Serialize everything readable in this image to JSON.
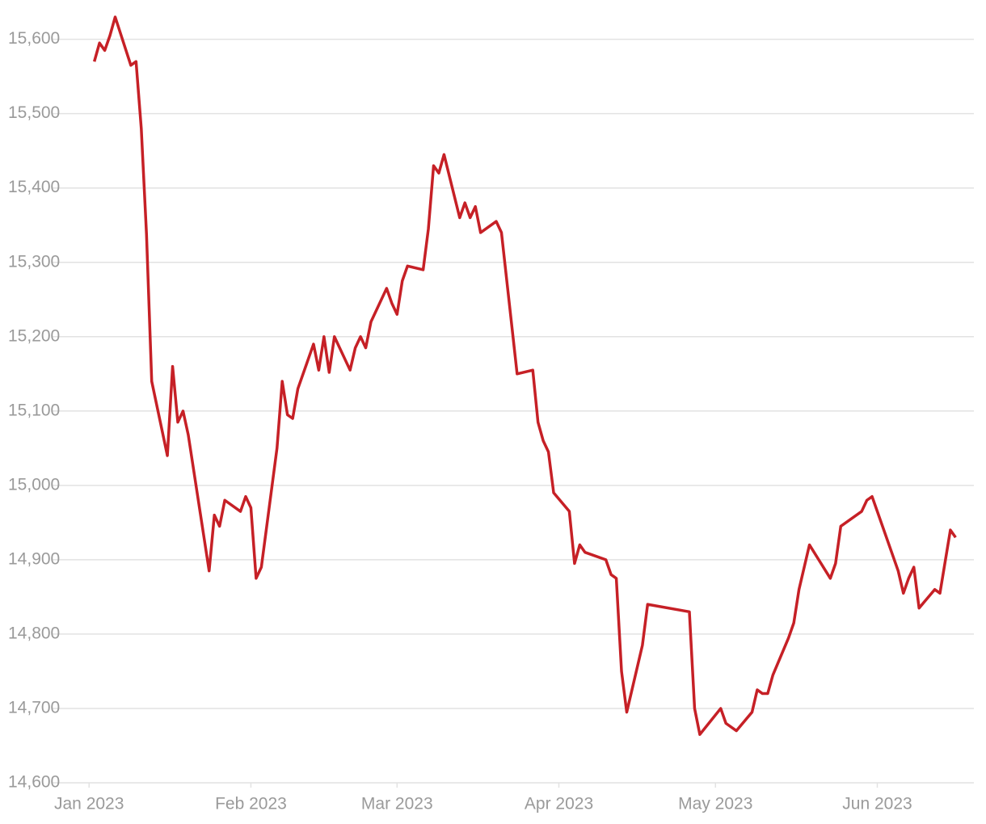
{
  "chart_data": {
    "type": "line",
    "x": [
      1,
      2,
      3,
      4,
      5,
      8,
      9,
      10,
      11,
      12,
      15,
      16,
      17,
      18,
      19,
      23,
      24,
      25,
      26,
      29,
      30,
      31,
      32,
      33,
      36,
      37,
      38,
      39,
      40,
      43,
      44,
      45,
      46,
      47,
      50,
      51,
      52,
      53,
      54,
      57,
      58,
      59,
      60,
      61,
      64,
      65,
      66,
      67,
      68,
      71,
      72,
      73,
      74,
      75,
      78,
      79,
      82,
      85,
      86,
      87,
      88,
      89,
      92,
      93,
      94,
      95,
      99,
      100,
      101,
      102,
      103,
      106,
      107,
      115,
      116,
      117,
      121,
      122,
      124,
      127,
      128,
      129,
      130,
      131,
      134,
      135,
      136,
      138,
      142,
      143,
      144,
      148,
      149,
      150,
      155,
      156,
      157,
      158,
      159,
      162,
      163,
      165,
      166
    ],
    "series": [
      {
        "color": "#c62026",
        "values": [
          15570,
          15595,
          15585,
          15605,
          15630,
          15565,
          15570,
          15480,
          15338,
          15140,
          15040,
          15160,
          15085,
          15100,
          15068,
          14885,
          14960,
          14945,
          14980,
          14965,
          14985,
          14970,
          14875,
          14890,
          15050,
          15140,
          15095,
          15090,
          15130,
          15190,
          15155,
          15200,
          15152,
          15200,
          15155,
          15185,
          15200,
          15185,
          15220,
          15265,
          15245,
          15230,
          15275,
          15295,
          15290,
          15345,
          15430,
          15420,
          15445,
          15360,
          15380,
          15360,
          15375,
          15340,
          15355,
          15340,
          15150,
          15155,
          15085,
          15060,
          15045,
          14990,
          14965,
          14895,
          14920,
          14910,
          14900,
          14880,
          14875,
          14750,
          14695,
          14785,
          14840,
          14830,
          14700,
          14665,
          14700,
          14680,
          14670,
          14695,
          14725,
          14720,
          14720,
          14745,
          14795,
          14815,
          14860,
          14920,
          14875,
          14895,
          14945,
          14965,
          14980,
          14985,
          14885,
          14855,
          14875,
          14890,
          14835,
          14860,
          14855,
          14940,
          14930
        ]
      }
    ],
    "xlim": [
      -7,
      169.5
    ],
    "xticks": [
      {
        "value": 0,
        "label": "Jan 2023"
      },
      {
        "value": 31,
        "label": "Feb 2023"
      },
      {
        "value": 59,
        "label": "Mar 2023"
      },
      {
        "value": 90,
        "label": "Apr 2023"
      },
      {
        "value": 120,
        "label": "May 2023"
      },
      {
        "value": 151,
        "label": "Jun 2023"
      }
    ],
    "ylim": [
      14600,
      15630
    ],
    "yticks": [
      {
        "value": 14600,
        "label": "14,600"
      },
      {
        "value": 14700,
        "label": "14,700"
      },
      {
        "value": 14800,
        "label": "14,800"
      },
      {
        "value": 14900,
        "label": "14,900"
      },
      {
        "value": 15000,
        "label": "15,000"
      },
      {
        "value": 15100,
        "label": "15,100"
      },
      {
        "value": 15200,
        "label": "15,200"
      },
      {
        "value": 15300,
        "label": "15,300"
      },
      {
        "value": 15400,
        "label": "15,400"
      },
      {
        "value": 15500,
        "label": "15,500"
      },
      {
        "value": 15600,
        "label": "15,600"
      }
    ],
    "grid": true
  }
}
